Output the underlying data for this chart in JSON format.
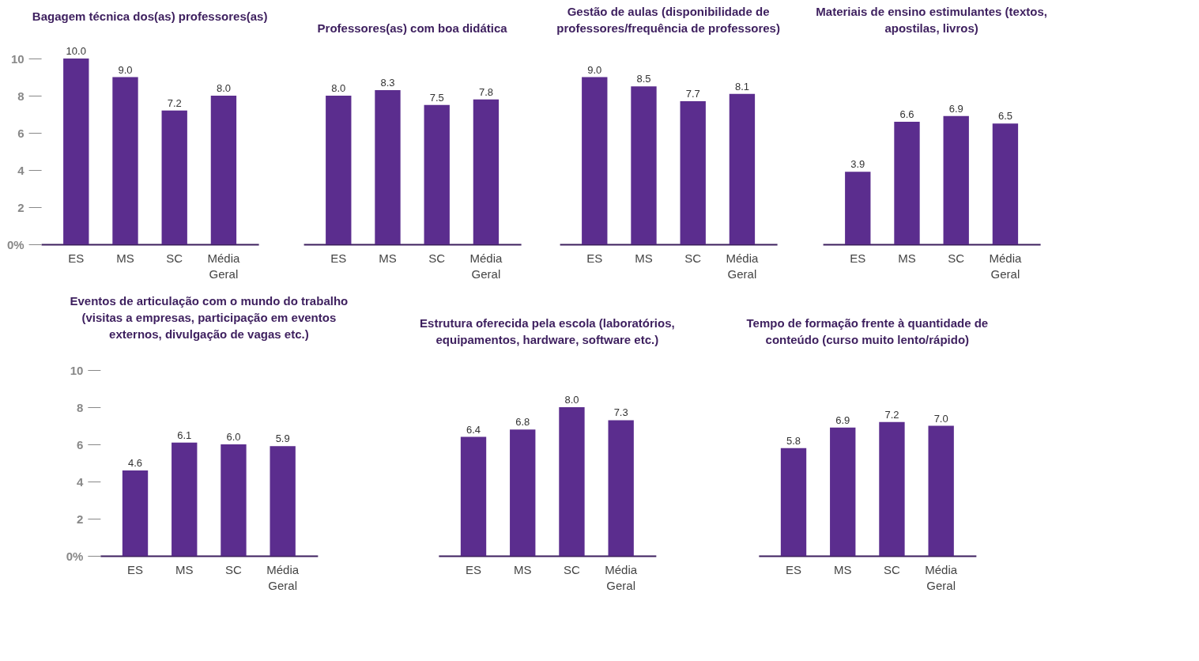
{
  "chart_data": [
    {
      "type": "bar",
      "title": "Bagagem técnica dos(as) professores(as)",
      "categories": [
        "ES",
        "MS",
        "SC",
        "Média Geral"
      ],
      "values": [
        10.0,
        9.0,
        7.2,
        8.0
      ],
      "value_labels": [
        "10.0",
        "9.0",
        "7.2",
        "8.0"
      ],
      "color": "#5b2d8e",
      "ylim": [
        0,
        10
      ],
      "yticks": [
        {
          "value": 0,
          "label": "0%"
        },
        2,
        4,
        6,
        8,
        10
      ]
    },
    {
      "type": "bar",
      "title": "Professores(as) com boa didática",
      "categories": [
        "ES",
        "MS",
        "SC",
        "Média Geral"
      ],
      "values": [
        8.0,
        8.3,
        7.5,
        7.8
      ],
      "value_labels": [
        "8.0",
        "8.3",
        "7.5",
        "7.8"
      ],
      "color": "#5b2d8e",
      "ylim": [
        0,
        10
      ],
      "tick_labels": "x"
    },
    {
      "type": "bar",
      "title": "Gestão de aulas (disponibilidade de professores/frequência de professores)",
      "categories": [
        "ES",
        "MS",
        "SC",
        "Média Geral"
      ],
      "values": [
        9.0,
        8.5,
        7.7,
        8.1
      ],
      "value_labels": [
        "9.0",
        "8.5",
        "7.7",
        "8.1"
      ],
      "color": "#5b2d8e",
      "ylim": [
        0,
        10
      ],
      "tick_labels": "x"
    },
    {
      "type": "bar",
      "title": "Materiais de ensino estimulantes (textos, apostilas, livros)",
      "categories": [
        "ES",
        "MS",
        "SC",
        "Média Geral"
      ],
      "values": [
        3.9,
        6.6,
        6.9,
        6.5
      ],
      "value_labels": [
        "3.9",
        "6.6",
        "6.9",
        "6.5"
      ],
      "color": "#5b2d8e",
      "ylim": [
        0,
        10
      ],
      "tick_labels": "x"
    },
    {
      "type": "bar",
      "title": "Eventos de articulação com o mundo do trabalho (visitas a empresas, participação em eventos externos, divulgação de vagas etc.)",
      "categories": [
        "ES",
        "MS",
        "SC",
        "Média Geral"
      ],
      "values": [
        4.6,
        6.1,
        6.0,
        5.9
      ],
      "value_labels": [
        "4.6",
        "6.1",
        "6.0",
        "5.9"
      ],
      "color": "#5b2d8e",
      "ylim": [
        0,
        10
      ],
      "yticks": [
        {
          "value": 0,
          "label": "0%"
        },
        2,
        4,
        6,
        8,
        10
      ]
    },
    {
      "type": "bar",
      "title": "Estrutura oferecida pela escola (laboratórios, equipamentos, hardware, software etc.)",
      "categories": [
        "ES",
        "MS",
        "SC",
        "Média Geral"
      ],
      "values": [
        6.4,
        6.8,
        8.0,
        7.3
      ],
      "value_labels": [
        "6.4",
        "6.8",
        "8.0",
        "7.3"
      ],
      "color": "#5b2d8e",
      "ylim": [
        0,
        10
      ],
      "tick_labels": "x"
    },
    {
      "type": "bar",
      "title": "Tempo de formação frente à quantidade de conteúdo (curso muito lento/rápido)",
      "categories": [
        "ES",
        "MS",
        "SC",
        "Média Geral"
      ],
      "values": [
        5.8,
        6.9,
        7.2,
        7.0
      ],
      "value_labels": [
        "5.8",
        "6.9",
        "7.2",
        "7.0"
      ],
      "color": "#5b2d8e",
      "ylim": [
        0,
        10
      ],
      "tick_labels": "x"
    }
  ]
}
